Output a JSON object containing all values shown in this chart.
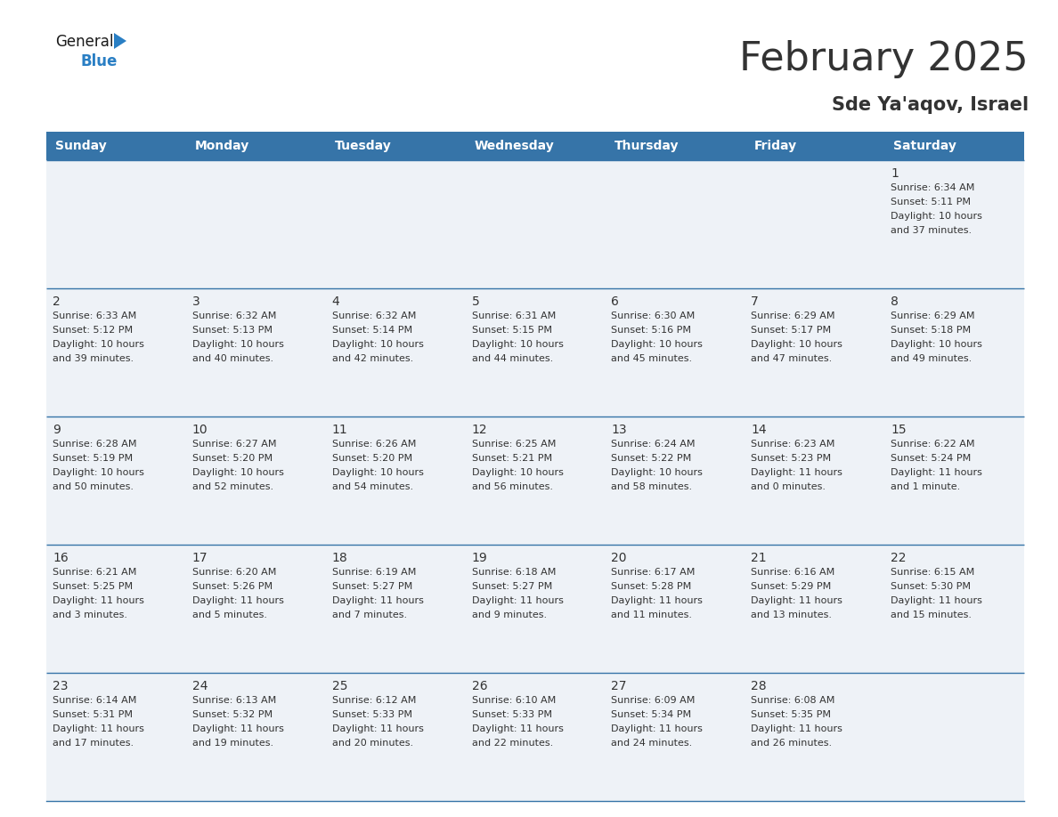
{
  "title": "February 2025",
  "subtitle": "Sde Ya'aqov, Israel",
  "header_bg": "#3674a8",
  "header_text_color": "#ffffff",
  "cell_bg": "#eef2f7",
  "grid_line_color": "#3674a8",
  "text_color": "#333333",
  "day_headers": [
    "Sunday",
    "Monday",
    "Tuesday",
    "Wednesday",
    "Thursday",
    "Friday",
    "Saturday"
  ],
  "weeks": [
    [
      {
        "day": null,
        "info": null
      },
      {
        "day": null,
        "info": null
      },
      {
        "day": null,
        "info": null
      },
      {
        "day": null,
        "info": null
      },
      {
        "day": null,
        "info": null
      },
      {
        "day": null,
        "info": null
      },
      {
        "day": 1,
        "info": "Sunrise: 6:34 AM\nSunset: 5:11 PM\nDaylight: 10 hours\nand 37 minutes."
      }
    ],
    [
      {
        "day": 2,
        "info": "Sunrise: 6:33 AM\nSunset: 5:12 PM\nDaylight: 10 hours\nand 39 minutes."
      },
      {
        "day": 3,
        "info": "Sunrise: 6:32 AM\nSunset: 5:13 PM\nDaylight: 10 hours\nand 40 minutes."
      },
      {
        "day": 4,
        "info": "Sunrise: 6:32 AM\nSunset: 5:14 PM\nDaylight: 10 hours\nand 42 minutes."
      },
      {
        "day": 5,
        "info": "Sunrise: 6:31 AM\nSunset: 5:15 PM\nDaylight: 10 hours\nand 44 minutes."
      },
      {
        "day": 6,
        "info": "Sunrise: 6:30 AM\nSunset: 5:16 PM\nDaylight: 10 hours\nand 45 minutes."
      },
      {
        "day": 7,
        "info": "Sunrise: 6:29 AM\nSunset: 5:17 PM\nDaylight: 10 hours\nand 47 minutes."
      },
      {
        "day": 8,
        "info": "Sunrise: 6:29 AM\nSunset: 5:18 PM\nDaylight: 10 hours\nand 49 minutes."
      }
    ],
    [
      {
        "day": 9,
        "info": "Sunrise: 6:28 AM\nSunset: 5:19 PM\nDaylight: 10 hours\nand 50 minutes."
      },
      {
        "day": 10,
        "info": "Sunrise: 6:27 AM\nSunset: 5:20 PM\nDaylight: 10 hours\nand 52 minutes."
      },
      {
        "day": 11,
        "info": "Sunrise: 6:26 AM\nSunset: 5:20 PM\nDaylight: 10 hours\nand 54 minutes."
      },
      {
        "day": 12,
        "info": "Sunrise: 6:25 AM\nSunset: 5:21 PM\nDaylight: 10 hours\nand 56 minutes."
      },
      {
        "day": 13,
        "info": "Sunrise: 6:24 AM\nSunset: 5:22 PM\nDaylight: 10 hours\nand 58 minutes."
      },
      {
        "day": 14,
        "info": "Sunrise: 6:23 AM\nSunset: 5:23 PM\nDaylight: 11 hours\nand 0 minutes."
      },
      {
        "day": 15,
        "info": "Sunrise: 6:22 AM\nSunset: 5:24 PM\nDaylight: 11 hours\nand 1 minute."
      }
    ],
    [
      {
        "day": 16,
        "info": "Sunrise: 6:21 AM\nSunset: 5:25 PM\nDaylight: 11 hours\nand 3 minutes."
      },
      {
        "day": 17,
        "info": "Sunrise: 6:20 AM\nSunset: 5:26 PM\nDaylight: 11 hours\nand 5 minutes."
      },
      {
        "day": 18,
        "info": "Sunrise: 6:19 AM\nSunset: 5:27 PM\nDaylight: 11 hours\nand 7 minutes."
      },
      {
        "day": 19,
        "info": "Sunrise: 6:18 AM\nSunset: 5:27 PM\nDaylight: 11 hours\nand 9 minutes."
      },
      {
        "day": 20,
        "info": "Sunrise: 6:17 AM\nSunset: 5:28 PM\nDaylight: 11 hours\nand 11 minutes."
      },
      {
        "day": 21,
        "info": "Sunrise: 6:16 AM\nSunset: 5:29 PM\nDaylight: 11 hours\nand 13 minutes."
      },
      {
        "day": 22,
        "info": "Sunrise: 6:15 AM\nSunset: 5:30 PM\nDaylight: 11 hours\nand 15 minutes."
      }
    ],
    [
      {
        "day": 23,
        "info": "Sunrise: 6:14 AM\nSunset: 5:31 PM\nDaylight: 11 hours\nand 17 minutes."
      },
      {
        "day": 24,
        "info": "Sunrise: 6:13 AM\nSunset: 5:32 PM\nDaylight: 11 hours\nand 19 minutes."
      },
      {
        "day": 25,
        "info": "Sunrise: 6:12 AM\nSunset: 5:33 PM\nDaylight: 11 hours\nand 20 minutes."
      },
      {
        "day": 26,
        "info": "Sunrise: 6:10 AM\nSunset: 5:33 PM\nDaylight: 11 hours\nand 22 minutes."
      },
      {
        "day": 27,
        "info": "Sunrise: 6:09 AM\nSunset: 5:34 PM\nDaylight: 11 hours\nand 24 minutes."
      },
      {
        "day": 28,
        "info": "Sunrise: 6:08 AM\nSunset: 5:35 PM\nDaylight: 11 hours\nand 26 minutes."
      },
      {
        "day": null,
        "info": null
      }
    ]
  ],
  "logo_text_general": "General",
  "logo_text_blue": "Blue",
  "logo_color_general": "#1a1a1a",
  "logo_color_blue": "#2a7fc4",
  "logo_triangle_color": "#2a7fc4",
  "title_fontsize": 32,
  "subtitle_fontsize": 15,
  "header_fontsize": 10,
  "day_num_fontsize": 10,
  "info_fontsize": 8
}
